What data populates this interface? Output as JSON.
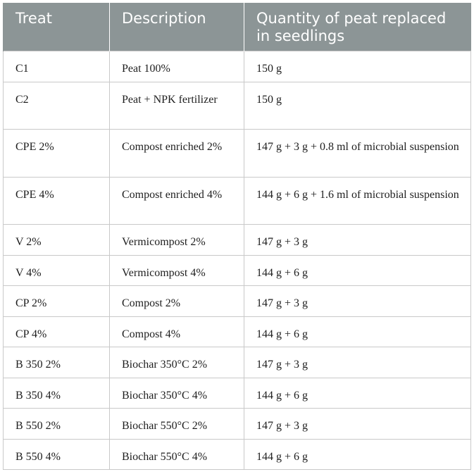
{
  "table": {
    "headers": [
      "Treat",
      "Description",
      "Quantity of peat replaced in seedlings"
    ],
    "rows": [
      {
        "treat": "C1",
        "description": "Peat 100%",
        "quantity": "150 g"
      },
      {
        "treat": "C2",
        "description": "Peat + NPK fertilizer",
        "quantity": "150 g"
      },
      {
        "treat": "CPE 2%",
        "description": "Compost enriched 2%",
        "quantity": "147 g + 3 g + 0.8 ml of microbial suspension"
      },
      {
        "treat": "CPE 4%",
        "description": "Compost enriched 4%",
        "quantity": "144 g + 6 g + 1.6 ml of microbial suspension"
      },
      {
        "treat": "V 2%",
        "description": "Vermicompost 2%",
        "quantity": "147 g + 3 g"
      },
      {
        "treat": "V 4%",
        "description": "Vermicompost 4%",
        "quantity": "144 g + 6 g"
      },
      {
        "treat": "CP 2%",
        "description": "Compost 2%",
        "quantity": "147 g + 3 g"
      },
      {
        "treat": "CP 4%",
        "description": "Compost 4%",
        "quantity": "144 g + 6 g"
      },
      {
        "treat": "B 350 2%",
        "description": "Biochar 350°C 2%",
        "quantity": "147 g + 3 g"
      },
      {
        "treat": "B 350 4%",
        "description": "Biochar 350°C 4%",
        "quantity": "144 g + 6 g"
      },
      {
        "treat": "B 550 2%",
        "description": "Biochar 550°C 2%",
        "quantity": "147 g + 3 g"
      },
      {
        "treat": "B 550 4%",
        "description": "Biochar 550°C 4%",
        "quantity": "144 g + 6 g"
      }
    ]
  }
}
